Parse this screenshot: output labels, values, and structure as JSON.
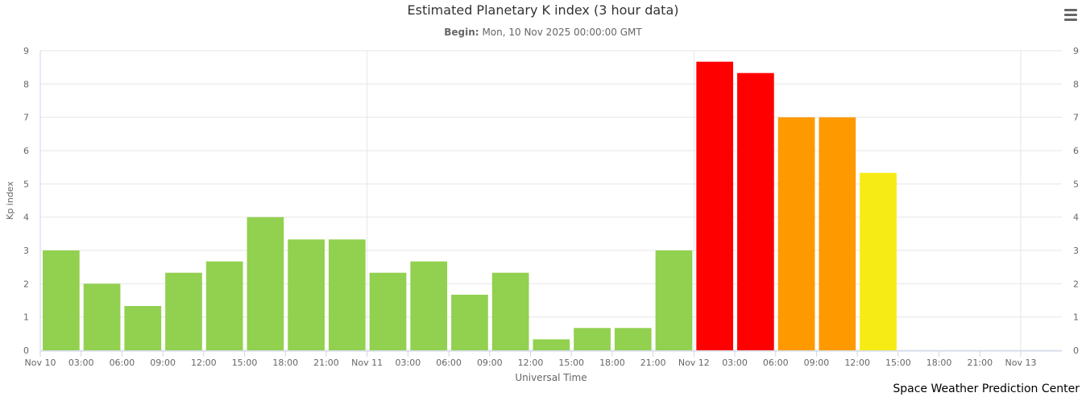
{
  "chart_data": {
    "type": "bar",
    "title": "Estimated Planetary K index (3 hour data)",
    "subtitle": {
      "label": "Begin:",
      "value": "Mon, 10 Nov 2025 00:00:00 GMT"
    },
    "xlabel": "Universal Time",
    "ylabel": "Kp index",
    "ylim": [
      0,
      9
    ],
    "yticks": [
      "0",
      "1",
      "2",
      "3",
      "4",
      "5",
      "6",
      "7",
      "8",
      "9"
    ],
    "xticks": [
      "Nov 10",
      "03:00",
      "06:00",
      "09:00",
      "12:00",
      "15:00",
      "18:00",
      "21:00",
      "Nov 11",
      "03:00",
      "06:00",
      "09:00",
      "12:00",
      "15:00",
      "18:00",
      "21:00",
      "Nov 12",
      "03:00",
      "06:00",
      "09:00",
      "12:00",
      "15:00",
      "18:00",
      "21:00",
      "Nov 13"
    ],
    "grid": true,
    "right_axis": true,
    "values": [
      3.0,
      2.0,
      1.33,
      2.33,
      2.67,
      4.0,
      3.33,
      3.33,
      2.33,
      2.67,
      1.67,
      2.33,
      0.33,
      0.67,
      0.67,
      3.0,
      8.67,
      8.33,
      7.0,
      7.0,
      5.33
    ],
    "colors": {
      "quiet": "#92d050",
      "active": "#f6eb14",
      "storm": "#ff9900",
      "severe": "#ff0000"
    }
  },
  "credit": "Space Weather Prediction Center",
  "menu": {
    "icon": "hamburger-menu-icon"
  }
}
